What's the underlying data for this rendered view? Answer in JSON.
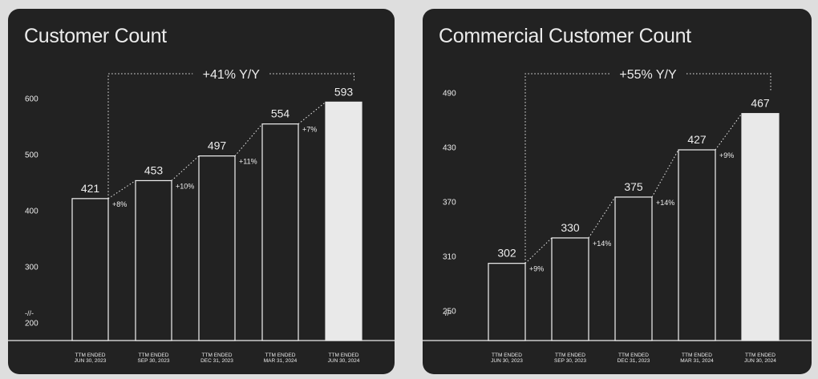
{
  "chart_data": [
    {
      "type": "bar",
      "title": "Customer Count",
      "categories": [
        [
          "TTM ENDED",
          "JUN 30, 2023"
        ],
        [
          "TTM ENDED",
          "SEP 30, 2023"
        ],
        [
          "TTM ENDED",
          "DEC 31, 2023"
        ],
        [
          "TTM ENDED",
          "MAR 31, 2024"
        ],
        [
          "TTM ENDED",
          "JUN 30, 2024"
        ]
      ],
      "values": [
        421,
        453,
        497,
        554,
        593
      ],
      "growth_labels": [
        "+8%",
        "+10%",
        "+11%",
        "+7%"
      ],
      "yoy_label": "+41% Y/Y",
      "yticks": [
        200,
        300,
        400,
        500,
        600
      ],
      "axis_break_label": "-//-",
      "ylim": [
        168,
        605
      ],
      "highlight_last": true,
      "colors": {
        "bar_fill": "#222222",
        "bar_stroke": "#f2f2f2",
        "highlight_fill": "#e9e9e9",
        "text": "#ececec"
      }
    },
    {
      "type": "bar",
      "title": "Commercial Customer Count",
      "categories": [
        [
          "TTM ENDED",
          "JUN 30, 2023"
        ],
        [
          "TTM ENDED",
          "SEP 30, 2023"
        ],
        [
          "TTM ENDED",
          "DEC 31, 2023"
        ],
        [
          "TTM ENDED",
          "MAR 31, 2024"
        ],
        [
          "TTM ENDED",
          "JUN 30, 2024"
        ]
      ],
      "values": [
        302,
        330,
        375,
        427,
        467
      ],
      "growth_labels": [
        "+9%",
        "+14%",
        "+14%",
        "+9%"
      ],
      "yoy_label": "+55% Y/Y",
      "yticks": [
        250,
        310,
        370,
        430,
        490
      ],
      "axis_break_label": "-//-",
      "ylim": [
        217,
        487
      ],
      "highlight_last": true,
      "colors": {
        "bar_fill": "#222222",
        "bar_stroke": "#f2f2f2",
        "highlight_fill": "#e9e9e9",
        "text": "#ececec"
      }
    }
  ]
}
